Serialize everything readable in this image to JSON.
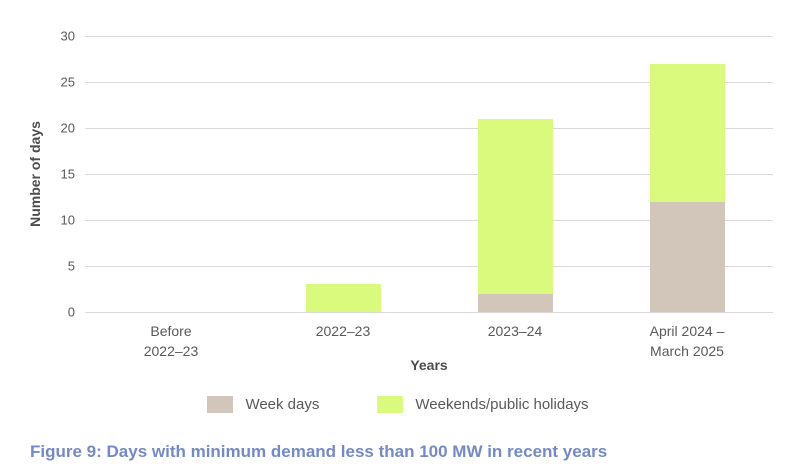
{
  "figure": {
    "caption": "Figure 9: Days with minimum demand less than 100 MW in recent years"
  },
  "chart_data": {
    "type": "bar",
    "stacked": true,
    "title": "",
    "xlabel": "Years",
    "ylabel": "Number of days",
    "ylim": [
      0,
      30
    ],
    "yticks": [
      0,
      5,
      10,
      15,
      20,
      25,
      30
    ],
    "grid": "horizontal",
    "legend_position": "bottom",
    "categories": [
      "Before\n2022–23",
      "2022–23",
      "2023–24",
      "April 2024 –\nMarch 2025"
    ],
    "series": [
      {
        "name": "Week days",
        "color": "#d1c6b9",
        "values": [
          0,
          0,
          2,
          12
        ]
      },
      {
        "name": "Weekends/public holidays",
        "color": "#d9fa7d",
        "values": [
          0,
          3,
          19,
          15
        ]
      }
    ],
    "totals": [
      0,
      3,
      21,
      27
    ]
  },
  "colors": {
    "background": "#ffffff",
    "gridline": "#d9d9d9",
    "axis_text": "#595959",
    "axis_title": "#4d4d4d",
    "caption": "#7589c8",
    "weekdays": "#d1c6b9",
    "weekends": "#d9fa7d"
  }
}
